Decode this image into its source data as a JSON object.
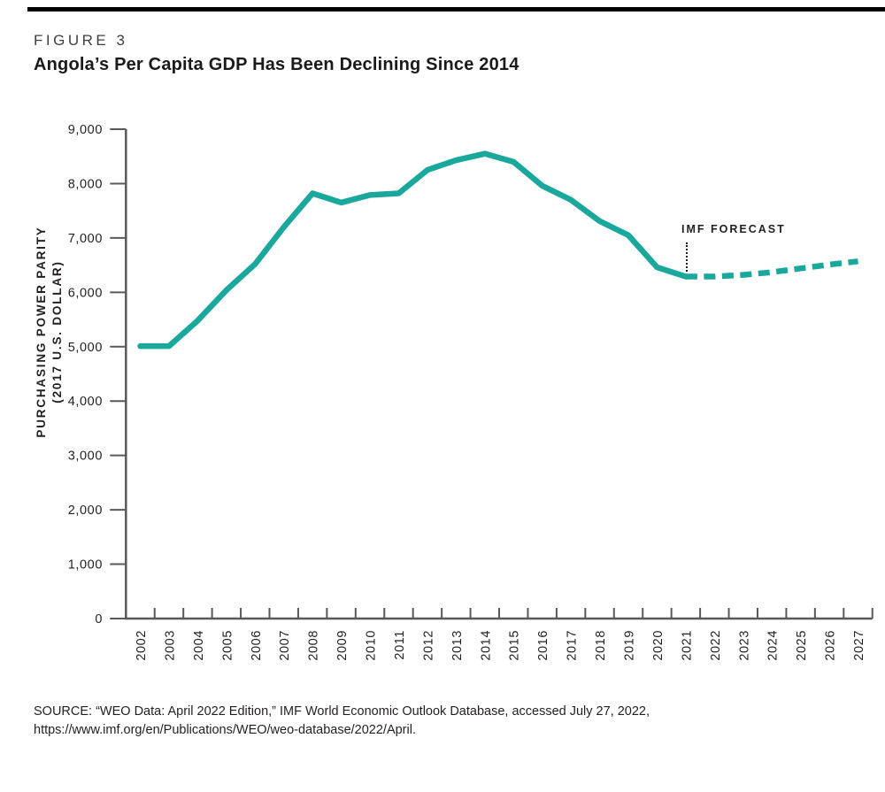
{
  "header": {
    "figure_label": "FIGURE 3",
    "title": "Angola’s Per Capita GDP Has Been Declining Since 2014"
  },
  "chart_data": {
    "type": "line",
    "title": "Angola’s Per Capita GDP Has Been Declining Since 2014",
    "ylabel_line1": "PURCHASING POWER PARITY",
    "ylabel_line2": "(2017 U.S. DOLLAR)",
    "xlabel": "",
    "ylim": [
      0,
      9000
    ],
    "ytick_step": 1000,
    "grid": false,
    "legend_position": "none",
    "line_color": "#1aa79c",
    "axis_color": "#58595b",
    "text_color": "#231f20",
    "annotation": {
      "label": "IMF FORECAST",
      "points_to_year": 2021
    },
    "forecast_start_year": 2021,
    "forecast_style": "dashed",
    "x": [
      2002,
      2003,
      2004,
      2005,
      2006,
      2007,
      2008,
      2009,
      2010,
      2011,
      2012,
      2013,
      2014,
      2015,
      2016,
      2017,
      2018,
      2019,
      2020,
      2021,
      2022,
      2023,
      2024,
      2025,
      2026,
      2027
    ],
    "series": [
      {
        "name": "Per capita GDP (purchasing power parity)",
        "values": [
          5010,
          5010,
          5480,
          6040,
          6520,
          7200,
          7820,
          7650,
          7790,
          7820,
          8250,
          8430,
          8550,
          8400,
          7960,
          7700,
          7310,
          7050,
          6460,
          6290,
          6290,
          6320,
          6370,
          6440,
          6510,
          6570
        ]
      }
    ]
  },
  "source": {
    "line1": "SOURCE: “WEO Data: April 2022 Edition,” IMF World Economic Outlook Database, accessed July 27, 2022,",
    "line2": "https://www.imf.org/en/Publications/WEO/weo-database/2022/April."
  }
}
